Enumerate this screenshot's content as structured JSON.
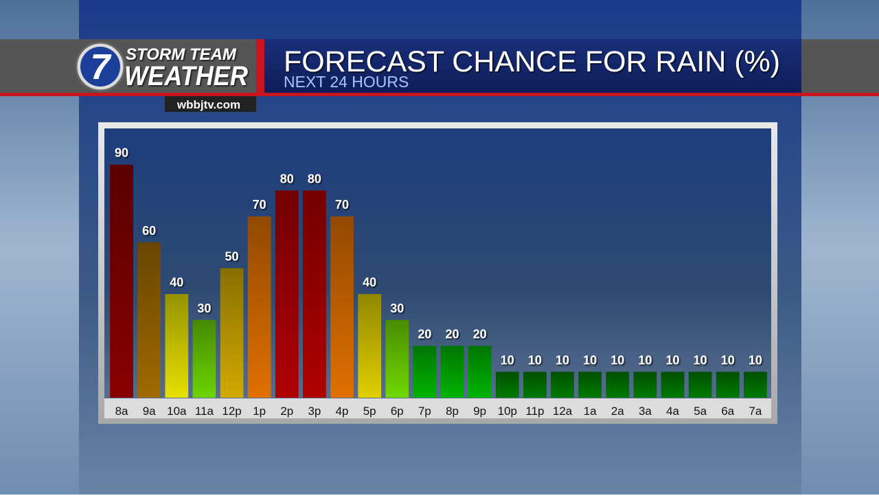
{
  "branding": {
    "logo_number": "7",
    "line1": "STORM TEAM",
    "line2": "WEATHER",
    "website": "wbbjtv.com"
  },
  "chart_data": {
    "type": "bar",
    "title": "FORECAST CHANCE FOR RAIN (%)",
    "subtitle": "NEXT 24 HOURS",
    "categories": [
      "8a",
      "9a",
      "10a",
      "11a",
      "12p",
      "1p",
      "2p",
      "3p",
      "4p",
      "5p",
      "6p",
      "7p",
      "8p",
      "9p",
      "10p",
      "11p",
      "12a",
      "1a",
      "2a",
      "3a",
      "4a",
      "5a",
      "6a",
      "7a"
    ],
    "values": [
      90,
      60,
      40,
      30,
      50,
      70,
      80,
      80,
      70,
      40,
      30,
      20,
      20,
      20,
      10,
      10,
      10,
      10,
      10,
      10,
      10,
      10,
      10,
      10
    ],
    "colors": [
      "#8a0000",
      "#a06a00",
      "#e6e000",
      "#6cd400",
      "#d2aa00",
      "#e07000",
      "#b00000",
      "#b00000",
      "#e07000",
      "#e0d000",
      "#70d800",
      "#00b400",
      "#00b400",
      "#00b400",
      "#007a00",
      "#007a00",
      "#007a00",
      "#007a00",
      "#007a00",
      "#007a00",
      "#007a00",
      "#007a00",
      "#007a00",
      "#007a00"
    ],
    "ylim": [
      0,
      100
    ]
  }
}
